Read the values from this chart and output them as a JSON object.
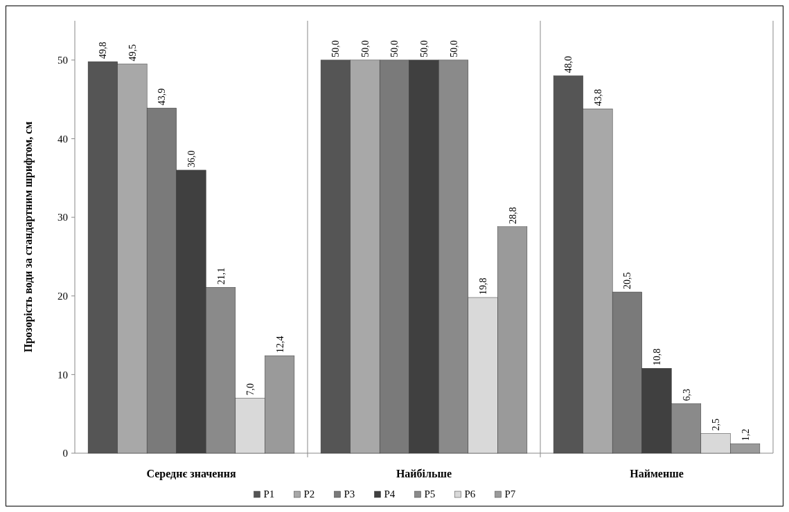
{
  "chart_data": {
    "type": "bar",
    "ylabel": "Прозорість води за стандартним шрифтом, см",
    "categories": [
      "Середнє значення",
      "Найбільше",
      "Найменше"
    ],
    "ylim": [
      0,
      55
    ],
    "yticks": [
      0,
      10,
      20,
      30,
      40,
      50
    ],
    "legend": "bottom",
    "series": [
      {
        "name": "P1",
        "color": "#555555",
        "values": [
          49.8,
          50.0,
          48.0
        ],
        "value_labels": [
          "49,8",
          "50,0",
          "48,0"
        ]
      },
      {
        "name": "P2",
        "color": "#a8a8a8",
        "values": [
          49.5,
          50.0,
          43.8
        ],
        "value_labels": [
          "49,5",
          "50,0",
          "43,8"
        ]
      },
      {
        "name": "P3",
        "color": "#7a7a7a",
        "values": [
          43.9,
          50.0,
          20.5
        ],
        "value_labels": [
          "43,9",
          "50,0",
          "20,5"
        ]
      },
      {
        "name": "P4",
        "color": "#404040",
        "values": [
          36.0,
          50.0,
          10.8
        ],
        "value_labels": [
          "36,0",
          "50,0",
          "10,8"
        ]
      },
      {
        "name": "P5",
        "color": "#8a8a8a",
        "values": [
          21.1,
          50.0,
          6.3
        ],
        "value_labels": [
          "21,1",
          "50,0",
          "6,3"
        ]
      },
      {
        "name": "P6",
        "color": "#d9d9d9",
        "values": [
          7.0,
          19.8,
          2.5
        ],
        "value_labels": [
          "7,0",
          "19,8",
          "2,5"
        ]
      },
      {
        "name": "P7",
        "color": "#9a9a9a",
        "values": [
          12.4,
          28.8,
          1.2
        ],
        "value_labels": [
          "12,4",
          "28,8",
          "1,2"
        ]
      }
    ]
  }
}
